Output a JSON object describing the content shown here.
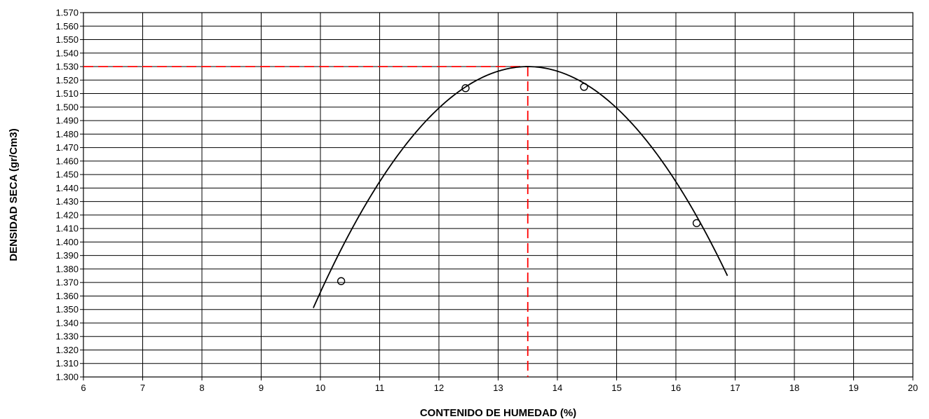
{
  "chart_data": {
    "type": "scatter",
    "title": "",
    "xlabel": "CONTENIDO DE HUMEDAD (%)",
    "ylabel": "DENSIDAD SECA (gr/Cm3)",
    "xlim": [
      6,
      20
    ],
    "ylim": [
      1.3,
      1.57
    ],
    "x_ticks": [
      "6",
      "7",
      "8",
      "9",
      "10",
      "11",
      "12",
      "13",
      "14",
      "15",
      "16",
      "17",
      "18",
      "19",
      "20"
    ],
    "y_ticks": [
      "1.300",
      "1.310",
      "1.320",
      "1.330",
      "1.340",
      "1.350",
      "1.360",
      "1.370",
      "1.380",
      "1.390",
      "1.400",
      "1.410",
      "1.420",
      "1.430",
      "1.440",
      "1.450",
      "1.460",
      "1.470",
      "1.480",
      "1.490",
      "1.500",
      "1.510",
      "1.520",
      "1.530",
      "1.540",
      "1.550",
      "1.560",
      "1.570"
    ],
    "grid": true,
    "legend": "none",
    "points": [
      {
        "x": 10.35,
        "y": 1.371
      },
      {
        "x": 12.45,
        "y": 1.514
      },
      {
        "x": 14.45,
        "y": 1.515
      },
      {
        "x": 16.35,
        "y": 1.414
      }
    ],
    "curve": {
      "type": "parabola",
      "x_start": 9.88,
      "x_end": 16.87,
      "x_peak": 13.5,
      "y_peak": 1.53,
      "y_at_x_end": 1.375
    },
    "optimum_marker": {
      "x": 13.5,
      "y": 1.53,
      "color": "#ff0000",
      "style": "dashed"
    },
    "colors": {
      "curve": "#000000",
      "points": "#000000",
      "grid": "#000000",
      "marker": "#ff0000"
    }
  }
}
